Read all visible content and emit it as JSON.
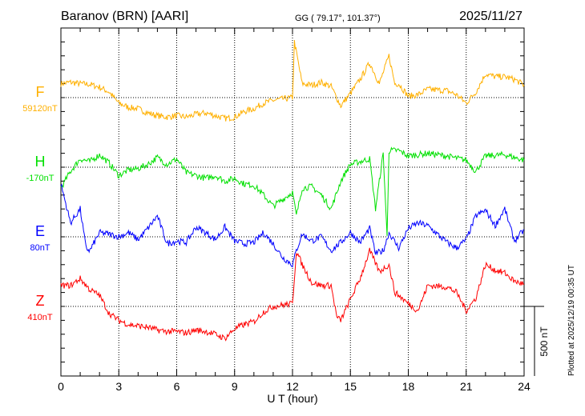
{
  "header": {
    "station": "Baranov (BRN)  [AARI]",
    "coords": "GG ( 79.17°, 101.37°)",
    "date": "2025/11/27"
  },
  "footer": {
    "plotted": "Plotted at 2025/12/19 00:35 UT"
  },
  "chart_data": {
    "type": "line",
    "xlabel": "U T (hour)",
    "xlim": [
      0,
      24
    ],
    "xticks": [
      "0",
      "3",
      "6",
      "9",
      "12",
      "15",
      "18",
      "21",
      "24"
    ],
    "scale_bar": "500 nT",
    "scale_nT": 500,
    "series": [
      {
        "name": "F",
        "baseline": "59120nT",
        "color": "#ffb000",
        "t": [
          0,
          0.5,
          1,
          1.5,
          2,
          2.5,
          3,
          3.5,
          4,
          4.5,
          5,
          5.5,
          6,
          6.5,
          7,
          7.5,
          8,
          8.5,
          9,
          9.5,
          10,
          10.5,
          11,
          11.5,
          12,
          12.1,
          12.3,
          12.5,
          13,
          13.5,
          14,
          14.5,
          15,
          15.5,
          16,
          16.5,
          17,
          17.3,
          17.5,
          18,
          18.5,
          19,
          20,
          20.5,
          21,
          21.5,
          22,
          22.5,
          23,
          23.5,
          24
        ],
        "v": [
          100,
          110,
          100,
          95,
          75,
          40,
          -40,
          -70,
          -80,
          -110,
          -130,
          -140,
          -130,
          -140,
          -120,
          -110,
          -130,
          -150,
          -140,
          -100,
          -80,
          -40,
          -20,
          -10,
          0,
          400,
          250,
          100,
          90,
          110,
          80,
          -60,
          30,
          130,
          250,
          100,
          300,
          100,
          100,
          10,
          20,
          60,
          50,
          20,
          -40,
          40,
          170,
          150,
          150,
          130,
          90
        ]
      },
      {
        "name": "H",
        "baseline": "-170nT",
        "color": "#00e000",
        "t": [
          0,
          0.5,
          1,
          1.5,
          2,
          2.5,
          3,
          3.5,
          4,
          4.5,
          5,
          5.5,
          6,
          6.5,
          7,
          7.5,
          8,
          8.5,
          9,
          9.5,
          10,
          10.5,
          11,
          11.5,
          12,
          12.2,
          12.5,
          13,
          13.5,
          14,
          14.5,
          15,
          15.5,
          16,
          16.3,
          16.7,
          16.9,
          17,
          17.5,
          18,
          19,
          20,
          21,
          21.5,
          22,
          23,
          24
        ],
        "v": [
          -150,
          -30,
          60,
          40,
          90,
          30,
          -60,
          -20,
          -10,
          20,
          70,
          20,
          60,
          -40,
          -60,
          -80,
          -60,
          -100,
          -80,
          -120,
          -130,
          -200,
          -280,
          -230,
          -180,
          -350,
          -150,
          -140,
          -200,
          -300,
          -100,
          20,
          40,
          60,
          -300,
          100,
          -500,
          120,
          120,
          80,
          100,
          80,
          50,
          -30,
          80,
          90,
          50
        ]
      },
      {
        "name": "E",
        "baseline": "80nT",
        "color": "#0000ff",
        "t": [
          0,
          0.5,
          1,
          1.3,
          1.5,
          2,
          2.5,
          3,
          3.5,
          4,
          4.5,
          5,
          5.5,
          6,
          6.5,
          7,
          7.5,
          8,
          8.5,
          9,
          9.5,
          10,
          10.5,
          11,
          11.5,
          12,
          12.2,
          12.5,
          13,
          13.5,
          14,
          14.5,
          15,
          15.5,
          16,
          16.3,
          16.7,
          17,
          17.5,
          18,
          18.5,
          19,
          20,
          20.5,
          21,
          21.5,
          22,
          22.5,
          23,
          23.5,
          24
        ],
        "v": [
          380,
          100,
          200,
          -80,
          -100,
          30,
          20,
          0,
          30,
          -20,
          60,
          150,
          -50,
          -30,
          -40,
          70,
          30,
          -20,
          70,
          -30,
          -50,
          -40,
          30,
          -50,
          -150,
          -200,
          -100,
          20,
          -30,
          0,
          -100,
          -40,
          30,
          -40,
          60,
          -120,
          -100,
          30,
          -80,
          60,
          100,
          80,
          -40,
          -80,
          -20,
          150,
          190,
          80,
          200,
          -30,
          50
        ]
      },
      {
        "name": "Z",
        "baseline": "410nT",
        "color": "#ff0000",
        "t": [
          0,
          0.5,
          1,
          1.5,
          2,
          2.5,
          3,
          3.5,
          4,
          4.5,
          5,
          5.5,
          6,
          6.5,
          7,
          7.5,
          8,
          8.5,
          9,
          9.5,
          10,
          10.5,
          11,
          11.5,
          12,
          12.2,
          12.5,
          13,
          13.5,
          14,
          14.3,
          14.5,
          15,
          15.5,
          16,
          16.5,
          17,
          17.3,
          17.5,
          18,
          18.5,
          19,
          20,
          20.5,
          21,
          21.5,
          22,
          22.5,
          23,
          23.5,
          24
        ],
        "v": [
          150,
          150,
          200,
          120,
          80,
          -50,
          -100,
          -130,
          -140,
          -150,
          -170,
          -180,
          -180,
          -190,
          -170,
          -180,
          -200,
          -230,
          -160,
          -130,
          -110,
          -40,
          0,
          10,
          20,
          400,
          300,
          170,
          150,
          150,
          -80,
          -100,
          50,
          200,
          400,
          250,
          300,
          100,
          80,
          20,
          -30,
          150,
          140,
          100,
          -30,
          60,
          300,
          260,
          240,
          180,
          160
        ]
      }
    ]
  }
}
